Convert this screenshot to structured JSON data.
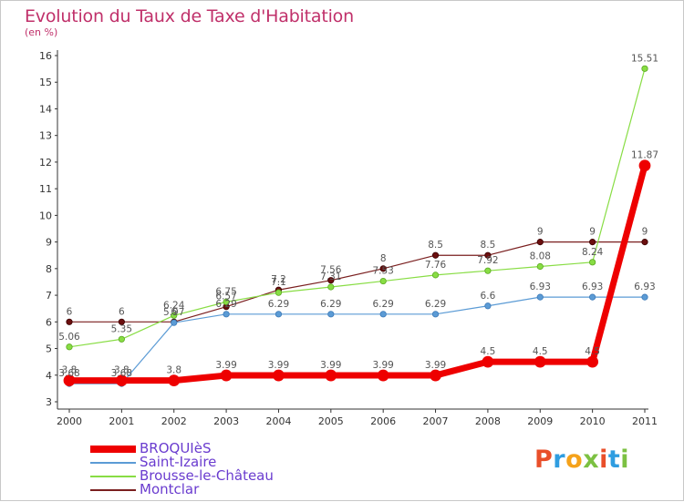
{
  "header": {
    "title": "Evolution du Taux de Taxe d'Habitation",
    "subtitle": "(en %)"
  },
  "logo": {
    "text": "Proxiti",
    "letters": [
      "P",
      "r",
      "o",
      "x",
      "i",
      "t",
      "i"
    ]
  },
  "chart_data": {
    "type": "line",
    "title": "Evolution du Taux de Taxe d'Habitation",
    "subtitle": "(en %)",
    "xlabel": "",
    "ylabel": "",
    "x": [
      "2000",
      "2001",
      "2002",
      "2003",
      "2004",
      "2005",
      "2006",
      "2007",
      "2008",
      "2009",
      "2010",
      "2011"
    ],
    "ylim": [
      3,
      16
    ],
    "yticks": [
      "3",
      "4",
      "5",
      "6",
      "7",
      "8",
      "9",
      "10",
      "11",
      "12",
      "13",
      "14",
      "15",
      "16"
    ],
    "grid": false,
    "legend_position": "bottom-left",
    "series": [
      {
        "name": "BROQUIèS",
        "color": "#ee0000",
        "values": [
          3.8,
          3.8,
          3.8,
          3.99,
          3.99,
          3.99,
          3.99,
          3.99,
          4.5,
          4.5,
          4.5,
          11.87
        ],
        "labels": [
          "3.8",
          "3.8",
          "3.8",
          "3.99",
          "3.99",
          "3.99",
          "3.99",
          "3.99",
          "4.5",
          "4.5",
          "4.5",
          "11.87"
        ]
      },
      {
        "name": "Saint-Izaire",
        "color": "#5b9bd5",
        "values": [
          3.68,
          3.68,
          5.97,
          6.29,
          6.29,
          6.29,
          6.29,
          6.29,
          6.6,
          6.93,
          6.93,
          6.93
        ],
        "labels": [
          "3.68",
          "3.68",
          "5.97",
          "6.29",
          "6.29",
          "6.29",
          "6.29",
          "6.29",
          "6.6",
          "6.93",
          "6.93",
          "6.93"
        ]
      },
      {
        "name": "Brousse-le-Château",
        "color": "#88dd44",
        "values": [
          5.06,
          5.35,
          6.24,
          6.75,
          7.1,
          7.31,
          7.53,
          7.76,
          7.92,
          8.08,
          8.24,
          15.51
        ],
        "labels": [
          "5.06",
          "5.35",
          "6.24",
          "6.75",
          "7.1",
          "7.31",
          "7.53",
          "7.76",
          "7.92",
          "8.08",
          "8.24",
          "15.51"
        ]
      },
      {
        "name": "Montclar",
        "color": "#7a1f1f",
        "values": [
          6,
          6,
          6,
          6.57,
          7.2,
          7.56,
          8,
          8.5,
          8.5,
          9,
          9,
          9
        ],
        "labels": [
          "6",
          "6",
          "6",
          "6.57",
          "7.2",
          "7.56",
          "8",
          "8.5",
          "8.5",
          "9",
          "9",
          "9"
        ]
      }
    ]
  }
}
